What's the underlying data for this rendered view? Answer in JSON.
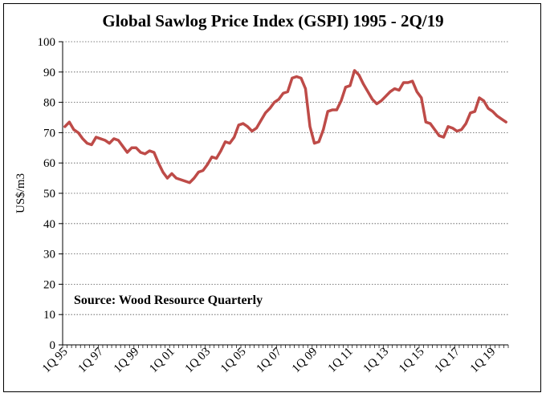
{
  "chart_data": {
    "type": "line",
    "title": "Global Sawlog Price Index (GSPI) 1995 - 2Q/19",
    "ylabel": "US$/m3",
    "xlabel": "",
    "annotation": "Source: Wood Resource Quarterly",
    "ylim": [
      0,
      100
    ],
    "yticks": [
      0,
      10,
      20,
      30,
      40,
      50,
      60,
      70,
      80,
      90,
      100
    ],
    "grid": true,
    "line_color": "#be4b48",
    "x_tick_labels": [
      "1Q 95",
      "1Q 97",
      "1Q 99",
      "1Q 01",
      "1Q 03",
      "1Q 05",
      "1Q 07",
      "1Q 09",
      "1Q 11",
      "1Q 13",
      "1Q 15",
      "1Q 17",
      "1Q 19"
    ],
    "x_start": "1Q 95",
    "x_end": "2Q 19",
    "series": [
      {
        "values": [
          72,
          73.5,
          71,
          70,
          68,
          66.5,
          66,
          68.5,
          68,
          67.5,
          66.5,
          68,
          67.5,
          65.5,
          63.5,
          65,
          65,
          63.5,
          63,
          64,
          63.5,
          60,
          57,
          55,
          56.5,
          55,
          54.5,
          54,
          53.5,
          55,
          57,
          57.5,
          59.5,
          62,
          61.5,
          64,
          67,
          66.5,
          68.5,
          72.5,
          73,
          72,
          70.5,
          71.5,
          74,
          76.5,
          78,
          80,
          81,
          83,
          83.5,
          88,
          88.5,
          88,
          84.5,
          72,
          66.5,
          67,
          71,
          77,
          77.5,
          77.5,
          80.5,
          85,
          85.5,
          90.5,
          89,
          86,
          83.5,
          81,
          79.5,
          80.5,
          82,
          83.5,
          84.5,
          84,
          86.5,
          86.5,
          87,
          83.5,
          81.5,
          73.5,
          73,
          71,
          69,
          68.5,
          72,
          71.5,
          70.5,
          71,
          73,
          76.5,
          77,
          81.5,
          80.5,
          78,
          77,
          75.5,
          74.5,
          73.5
        ]
      }
    ]
  }
}
